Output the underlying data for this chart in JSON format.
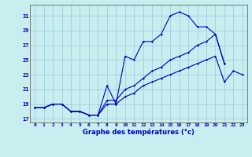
{
  "title": "Graphe des températures (°c)",
  "background_color": "#c8eef0",
  "grid_color": "#9ac8d8",
  "line_color": "#0000bb",
  "xlim": [
    -0.5,
    23.5
  ],
  "ylim": [
    16.5,
    32.5
  ],
  "xticks": [
    0,
    1,
    2,
    3,
    4,
    5,
    6,
    7,
    8,
    9,
    10,
    11,
    12,
    13,
    14,
    15,
    16,
    17,
    18,
    19,
    20,
    21,
    22,
    23
  ],
  "yticks": [
    17,
    19,
    21,
    23,
    25,
    27,
    29,
    31
  ],
  "series1": {
    "x": [
      0,
      1,
      2,
      3,
      4,
      5,
      6,
      7,
      8,
      9,
      10,
      11,
      12,
      13,
      14,
      15,
      16,
      17,
      18,
      19,
      20,
      21,
      22,
      23
    ],
    "y": [
      18.5,
      18.5,
      19.0,
      19.0,
      18.0,
      18.0,
      17.5,
      17.5,
      21.5,
      19.0,
      25.5,
      25.0,
      27.5,
      27.5,
      28.5,
      31.0,
      31.5,
      31.0,
      29.5,
      29.5,
      28.5,
      24.5,
      null,
      null
    ]
  },
  "series2": {
    "x": [
      0,
      1,
      2,
      3,
      4,
      5,
      6,
      7,
      8,
      9,
      10,
      11,
      12,
      13,
      14,
      15,
      16,
      17,
      18,
      19,
      20,
      21,
      22,
      23
    ],
    "y": [
      18.5,
      18.5,
      19.0,
      19.0,
      18.0,
      18.0,
      17.5,
      17.5,
      19.5,
      19.5,
      21.0,
      21.5,
      22.5,
      23.5,
      24.0,
      25.0,
      25.5,
      26.0,
      27.0,
      27.5,
      28.5,
      24.5,
      null,
      null
    ]
  },
  "series3": {
    "x": [
      0,
      1,
      2,
      3,
      4,
      5,
      6,
      7,
      8,
      9,
      10,
      11,
      12,
      13,
      14,
      15,
      16,
      17,
      18,
      19,
      20,
      21,
      22,
      23
    ],
    "y": [
      18.5,
      18.5,
      19.0,
      19.0,
      18.0,
      18.0,
      17.5,
      17.5,
      19.0,
      19.0,
      20.0,
      20.5,
      21.5,
      22.0,
      22.5,
      23.0,
      23.5,
      24.0,
      24.5,
      25.0,
      25.5,
      22.0,
      23.5,
      23.0
    ]
  }
}
